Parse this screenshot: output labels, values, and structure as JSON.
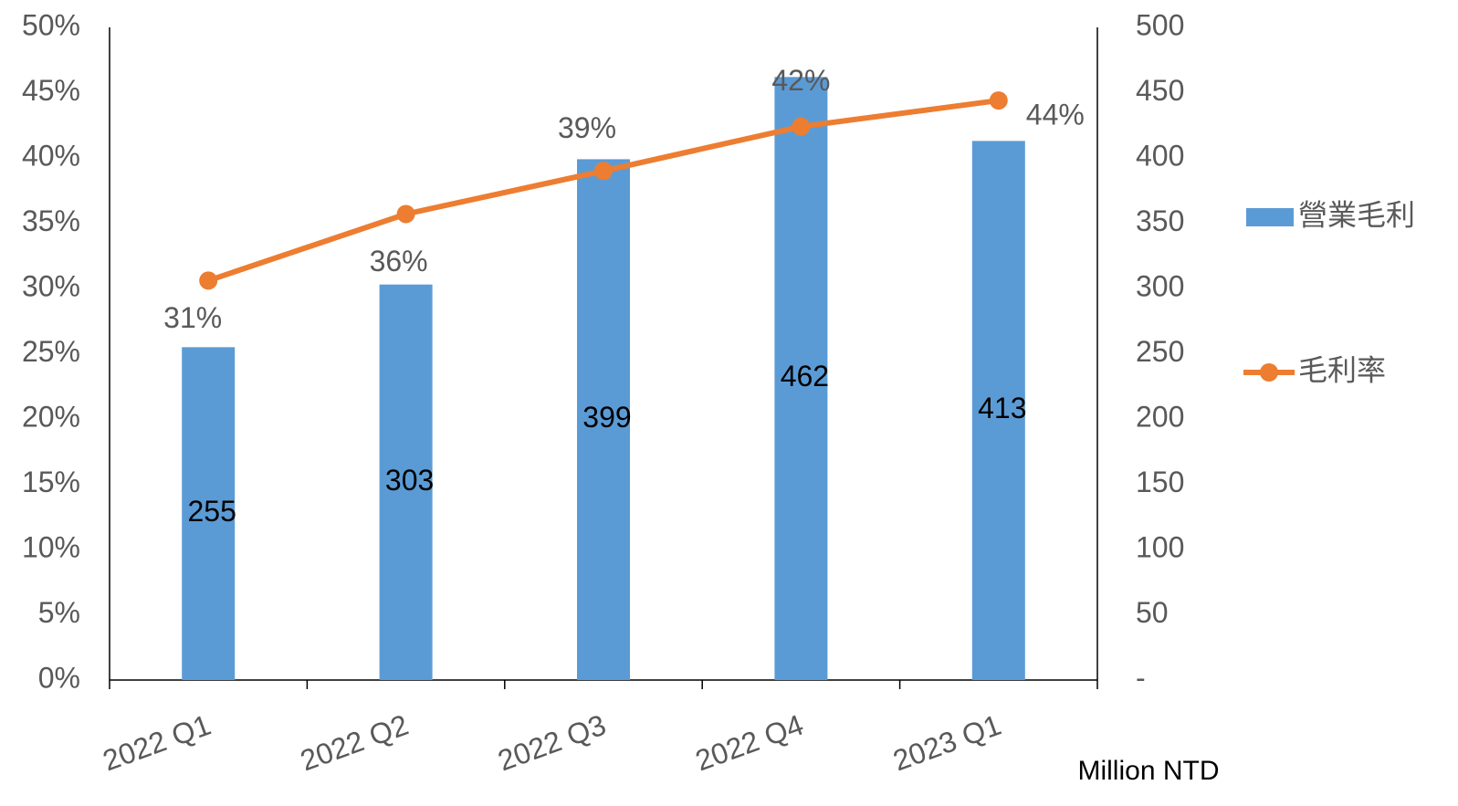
{
  "chart_data": {
    "type": "bar",
    "categories": [
      "2022 Q1",
      "2022 Q2",
      "2022 Q3",
      "2022 Q4",
      "2023 Q1"
    ],
    "series": [
      {
        "name": "營業毛利",
        "type": "bar",
        "axis": "y2",
        "color": "#5b9bd5",
        "values": [
          255,
          303,
          399,
          462,
          413
        ]
      },
      {
        "name": "毛利率",
        "type": "line",
        "axis": "y",
        "color": "#ed7d31",
        "values": [
          30.6,
          35.7,
          39.0,
          42.4,
          44.4
        ],
        "value_labels": [
          "31%",
          "36%",
          "39%",
          "42%",
          "44%"
        ]
      }
    ],
    "ylim": [
      0,
      50
    ],
    "yticks": [
      {
        "value": 0,
        "label": "0%"
      },
      {
        "value": 5,
        "label": "5%"
      },
      {
        "value": 10,
        "label": "10%"
      },
      {
        "value": 15,
        "label": "15%"
      },
      {
        "value": 20,
        "label": "20%"
      },
      {
        "value": 25,
        "label": "25%"
      },
      {
        "value": 30,
        "label": "30%"
      },
      {
        "value": 35,
        "label": "35%"
      },
      {
        "value": 40,
        "label": "40%"
      },
      {
        "value": 45,
        "label": "45%"
      },
      {
        "value": 50,
        "label": "50%"
      }
    ],
    "y2lim": [
      0,
      500
    ],
    "y2ticks": [
      {
        "value": 0,
        "label": "-"
      },
      50,
      100,
      150,
      200,
      250,
      300,
      350,
      400,
      450,
      500
    ],
    "annotation": "Million NTD",
    "legend": "right",
    "grid": false
  }
}
